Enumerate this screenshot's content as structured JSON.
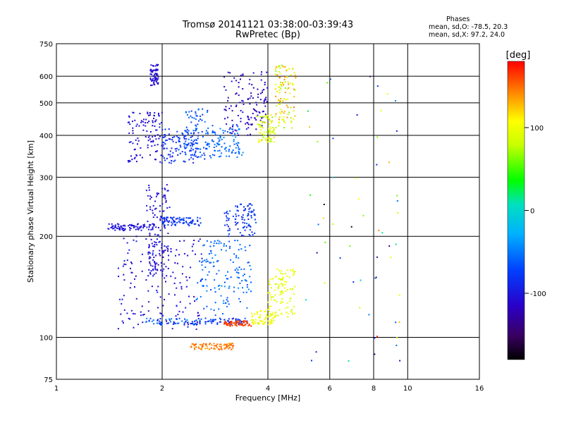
{
  "chart_data": {
    "type": "scatter",
    "title": "Tromsø 20141121 03:38:00-03:39:43",
    "subtitle": "RwPretec (Bp)",
    "xlabel": "Frequency [MHz]",
    "ylabel": "Stationary phase Virtual Height [km]",
    "x_scale": "log",
    "y_scale": "log",
    "xlim": [
      1,
      16
    ],
    "ylim": [
      75,
      750
    ],
    "x_ticks": [
      1,
      2,
      4,
      6,
      8,
      10,
      16
    ],
    "y_ticks": [
      75,
      100,
      200,
      300,
      400,
      500,
      600,
      750
    ],
    "grid": true,
    "phases_box": {
      "heading": "Phases",
      "line_o": "mean, sd,O: -78.5, 20.3",
      "line_x": "mean, sd,X:  97.2, 24.0"
    },
    "colorbar": {
      "label": "[deg]",
      "range": [
        -180,
        180
      ],
      "ticks": [
        100,
        0,
        -100
      ],
      "colormap": "rainbow (black-purple-blue-cyan-green-yellow-orange-red)"
    },
    "clusters": [
      {
        "x": [
          1.6,
          2.0
        ],
        "y": [
          330,
          470
        ],
        "phase": [
          -115,
          -95
        ]
      },
      {
        "x": [
          1.85,
          1.95
        ],
        "y": [
          560,
          650
        ],
        "phase": [
          -115,
          -100
        ]
      },
      {
        "x": [
          2.0,
          2.5
        ],
        "y": [
          330,
          420
        ],
        "phase": [
          -95,
          -70
        ]
      },
      {
        "x": [
          2.3,
          2.7
        ],
        "y": [
          340,
          480
        ],
        "phase": [
          -85,
          -50
        ]
      },
      {
        "x": [
          2.7,
          3.4
        ],
        "y": [
          340,
          430
        ],
        "phase": [
          -70,
          -40
        ]
      },
      {
        "x": [
          3.0,
          4.0
        ],
        "y": [
          400,
          620
        ],
        "phase": [
          -130,
          -100
        ]
      },
      {
        "x": [
          3.7,
          4.2
        ],
        "y": [
          380,
          460
        ],
        "phase": [
          60,
          120
        ]
      },
      {
        "x": [
          4.2,
          4.8
        ],
        "y": [
          420,
          650
        ],
        "phase": [
          60,
          150
        ]
      },
      {
        "x": [
          1.5,
          2.6
        ],
        "y": [
          105,
          200
        ],
        "phase": [
          -120,
          -90
        ]
      },
      {
        "x": [
          1.8,
          2.1
        ],
        "y": [
          150,
          285
        ],
        "phase": [
          -115,
          -95
        ]
      },
      {
        "x": [
          1.4,
          1.9
        ],
        "y": [
          208,
          218
        ],
        "phase": [
          -110,
          -95
        ]
      },
      {
        "x": [
          2.0,
          2.6
        ],
        "y": [
          215,
          228
        ],
        "phase": [
          -90,
          -70
        ]
      },
      {
        "x": [
          2.5,
          3.6
        ],
        "y": [
          115,
          195
        ],
        "phase": [
          -70,
          -40
        ]
      },
      {
        "x": [
          3.0,
          3.7
        ],
        "y": [
          200,
          250
        ],
        "phase": [
          -100,
          -60
        ]
      },
      {
        "x": [
          1.8,
          3.5
        ],
        "y": [
          109,
          114
        ],
        "phase": [
          -100,
          -40
        ]
      },
      {
        "x": [
          3.0,
          3.6
        ],
        "y": [
          108,
          112
        ],
        "phase": [
          150,
          175
        ]
      },
      {
        "x": [
          3.6,
          4.2
        ],
        "y": [
          109,
          120
        ],
        "phase": [
          85,
          115
        ]
      },
      {
        "x": [
          4.0,
          4.8
        ],
        "y": [
          115,
          160
        ],
        "phase": [
          80,
          110
        ]
      },
      {
        "x": [
          2.4,
          3.2
        ],
        "y": [
          92,
          96
        ],
        "phase": [
          130,
          160
        ]
      },
      {
        "x": [
          5.0,
          9.5
        ],
        "y": [
          85,
          600
        ],
        "phase": [
          -180,
          180
        ]
      }
    ]
  }
}
